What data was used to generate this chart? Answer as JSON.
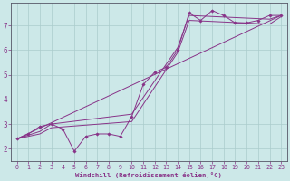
{
  "bg_color": "#cce8e8",
  "grid_color": "#aacccc",
  "line_color": "#883388",
  "xlabel": "Windchill (Refroidissement éolien,°C)",
  "xlabel_color": "#883388",
  "ylabel_color": "#883388",
  "xlim": [
    -0.5,
    23.5
  ],
  "ylim": [
    1.5,
    7.9
  ],
  "yticks": [
    2,
    3,
    4,
    5,
    6,
    7
  ],
  "xticks": [
    0,
    1,
    2,
    3,
    4,
    5,
    6,
    7,
    8,
    9,
    10,
    11,
    12,
    13,
    14,
    15,
    16,
    17,
    18,
    19,
    20,
    21,
    22,
    23
  ],
  "line1_x": [
    0,
    1,
    2,
    3,
    4,
    5,
    6,
    7,
    8,
    9,
    10,
    11,
    12,
    13,
    14,
    15,
    16,
    17,
    18,
    19,
    20,
    21,
    22,
    23
  ],
  "line1_y": [
    2.4,
    2.6,
    2.9,
    3.0,
    2.8,
    1.9,
    2.5,
    2.6,
    2.6,
    2.5,
    3.3,
    4.6,
    5.1,
    5.3,
    6.0,
    7.5,
    7.2,
    7.6,
    7.4,
    7.1,
    7.1,
    7.2,
    7.4,
    7.4
  ],
  "line2_x": [
    0,
    2,
    3,
    10,
    14,
    15,
    22,
    23
  ],
  "line2_y": [
    2.4,
    2.7,
    3.0,
    3.4,
    6.1,
    7.4,
    7.25,
    7.4
  ],
  "line3_x": [
    0,
    2,
    3,
    10,
    14,
    15,
    22,
    23
  ],
  "line3_y": [
    2.4,
    2.6,
    2.85,
    3.1,
    5.9,
    7.2,
    7.05,
    7.35
  ],
  "line4_x": [
    0,
    23
  ],
  "line4_y": [
    2.4,
    7.4
  ]
}
